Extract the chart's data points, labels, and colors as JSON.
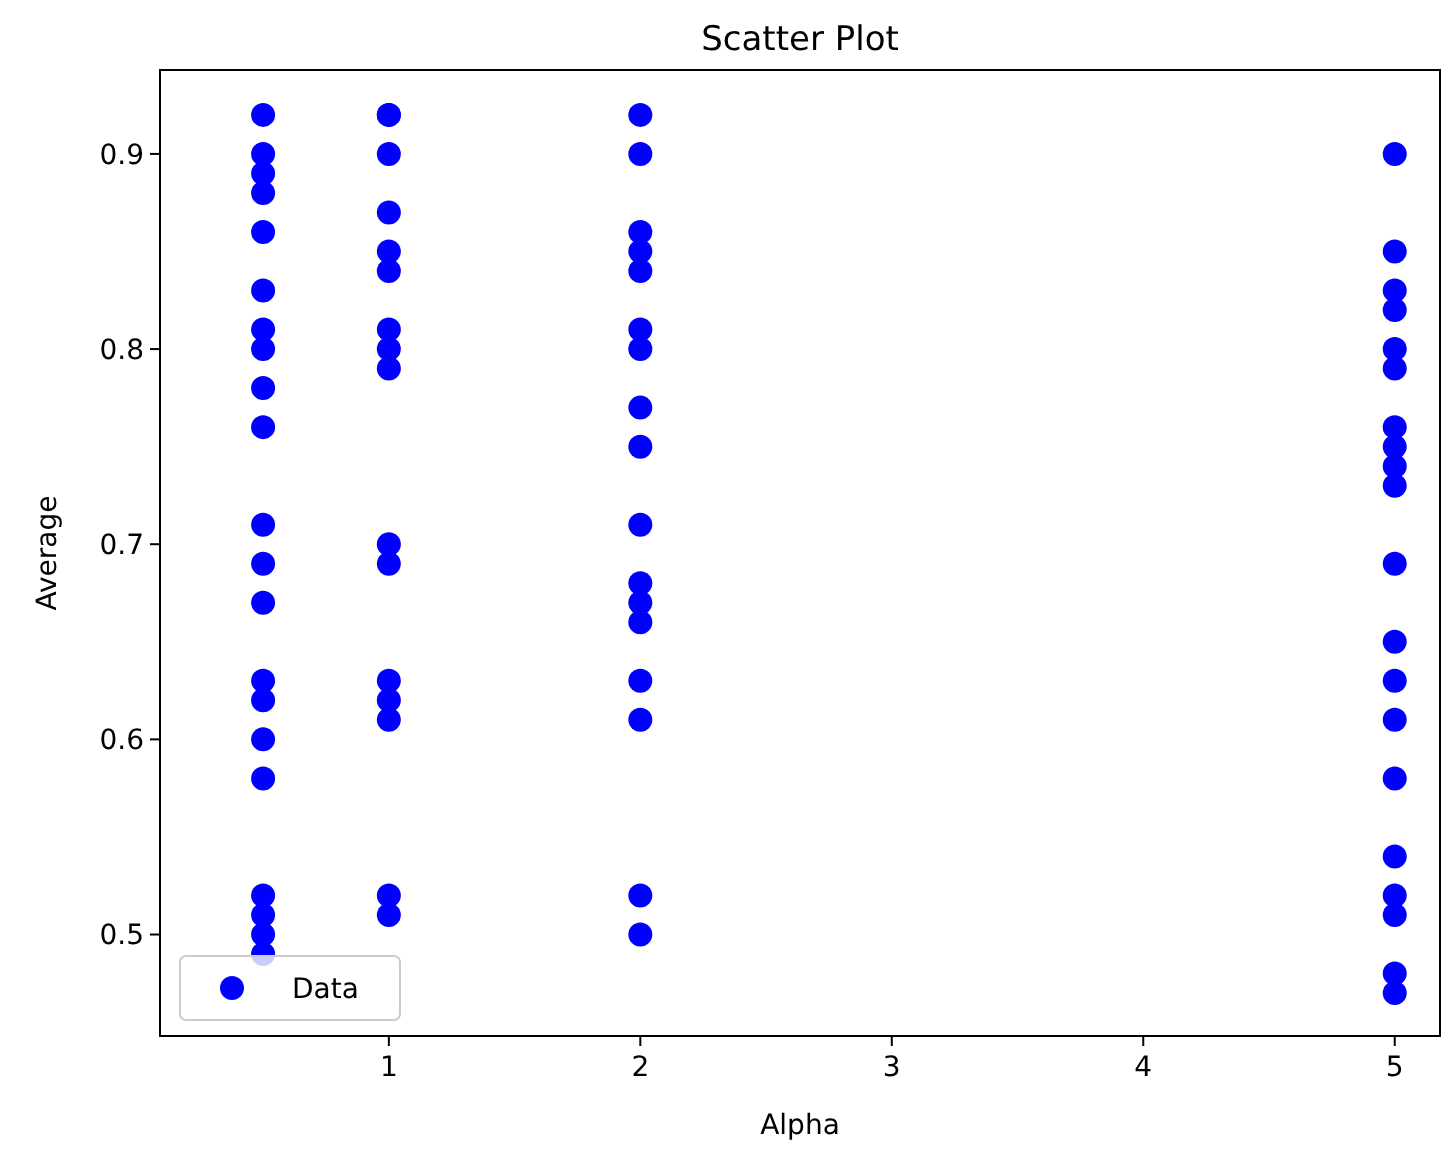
{
  "chart_data": {
    "type": "scatter",
    "title": "Scatter Plot",
    "xlabel": "Alpha",
    "ylabel": "Average",
    "xlim": [
      0.09,
      5.18
    ],
    "xticks": [
      1,
      2,
      3,
      4,
      5
    ],
    "ylim": [
      0.448,
      0.943
    ],
    "yticks": [
      0.5,
      0.6,
      0.7,
      0.8,
      0.9
    ],
    "grid": false,
    "legend": "bottom left",
    "marker": "circle",
    "series": [
      {
        "name": "Data",
        "color": "#0000ff",
        "x": [
          0.5,
          0.5,
          0.5,
          0.5,
          0.5,
          0.5,
          0.5,
          0.5,
          0.5,
          0.5,
          0.5,
          0.5,
          0.5,
          0.5,
          0.5,
          0.5,
          0.5,
          0.5,
          0.5,
          0.5,
          0.5,
          1,
          1,
          1,
          1,
          1,
          1,
          1,
          1,
          1,
          1,
          1,
          1,
          1,
          1,
          1,
          1,
          2,
          2,
          2,
          2,
          2,
          2,
          2,
          2,
          2,
          2,
          2,
          2,
          2,
          2,
          2,
          2,
          2,
          5,
          5,
          5,
          5,
          5,
          5,
          5,
          5,
          5,
          5,
          5,
          5,
          5,
          5,
          5,
          5,
          5,
          5,
          5,
          5
        ],
        "values": [
          0.92,
          0.9,
          0.89,
          0.88,
          0.86,
          0.83,
          0.81,
          0.8,
          0.78,
          0.76,
          0.71,
          0.69,
          0.67,
          0.63,
          0.62,
          0.6,
          0.58,
          0.52,
          0.51,
          0.5,
          0.49,
          0.92,
          0.92,
          0.9,
          0.87,
          0.85,
          0.84,
          0.81,
          0.8,
          0.79,
          0.7,
          0.69,
          0.63,
          0.62,
          0.61,
          0.52,
          0.51,
          0.92,
          0.9,
          0.86,
          0.85,
          0.84,
          0.81,
          0.8,
          0.77,
          0.75,
          0.71,
          0.68,
          0.67,
          0.66,
          0.63,
          0.61,
          0.52,
          0.5,
          0.9,
          0.85,
          0.83,
          0.82,
          0.8,
          0.79,
          0.76,
          0.75,
          0.74,
          0.73,
          0.69,
          0.65,
          0.63,
          0.61,
          0.58,
          0.54,
          0.52,
          0.51,
          0.48,
          0.47
        ]
      }
    ]
  }
}
